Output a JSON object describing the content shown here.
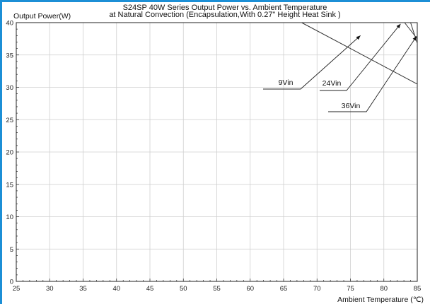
{
  "chart_data": {
    "type": "line",
    "title": "S24SP 40W Series Output Power vs. Ambient Temperature",
    "subtitle": "at Natural Convection (Encapsulation,With 0.27\" Height Heat Sink )",
    "xlabel": "Ambient Temperature (℃)",
    "ylabel": "Output Power(W)",
    "xlim": [
      25,
      85
    ],
    "ylim": [
      0,
      40
    ],
    "xticks": [
      25,
      30,
      35,
      40,
      45,
      50,
      55,
      60,
      65,
      70,
      75,
      80,
      85
    ],
    "yticks": [
      0,
      5,
      10,
      15,
      20,
      25,
      30,
      35,
      40
    ],
    "grid": true,
    "series": [
      {
        "name": "9Vin",
        "x": [
          67.7,
          85
        ],
        "y": [
          40,
          30.5
        ],
        "label_at": [
          76.5,
          38
        ]
      },
      {
        "name": "24Vin",
        "x": [
          83.1,
          85
        ],
        "y": [
          40,
          37.5
        ],
        "label_at": [
          82.5,
          39.8
        ]
      },
      {
        "name": "36Vin",
        "x": [
          84.0,
          85
        ],
        "y": [
          40,
          36.8
        ],
        "label_at": [
          84.9,
          37.9
        ]
      }
    ]
  }
}
